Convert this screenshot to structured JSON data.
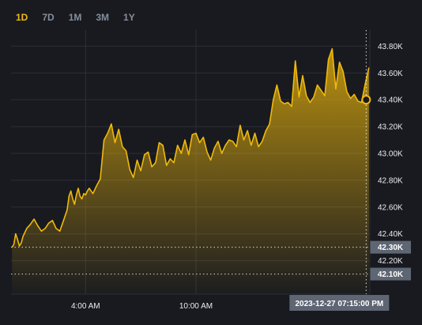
{
  "tabs": [
    {
      "label": "1D",
      "active": true
    },
    {
      "label": "7D",
      "active": false
    },
    {
      "label": "1M",
      "active": false
    },
    {
      "label": "3M",
      "active": false
    },
    {
      "label": "1Y",
      "active": false
    }
  ],
  "colors": {
    "accent": "#f0b90b",
    "background": "#181a20",
    "grid": "#2b2f36",
    "tag": "#5e6673"
  },
  "chart_data": {
    "type": "area",
    "xlabel": "",
    "ylabel": "",
    "y_ticks": [
      "42.40K",
      "42.60K",
      "42.80K",
      "43.00K",
      "43.20K",
      "43.40K",
      "43.60K",
      "43.80K"
    ],
    "y_tick_values": [
      42400,
      42600,
      42800,
      43000,
      43200,
      43400,
      43600,
      43800
    ],
    "x_ticks": [
      {
        "label": "4:00 AM",
        "hour": 4.0
      },
      {
        "label": "10:00 AM",
        "hour": 10.0
      }
    ],
    "ylim": [
      41950,
      43920
    ],
    "xlim_hours": [
      -0.05,
      19.45
    ],
    "grid": true,
    "reference_lines": [
      {
        "label": "42.30K",
        "value": 42300
      },
      {
        "label": "42.10K",
        "value": 42100
      }
    ],
    "crosshair": {
      "label": "2023-12-27 07:15:00 PM",
      "hour": 19.25,
      "value": 43400
    },
    "series": [
      {
        "x_hours": [
          0.0,
          0.1,
          0.2,
          0.3,
          0.4,
          0.5,
          0.6,
          0.8,
          1.0,
          1.2,
          1.4,
          1.6,
          1.8,
          2.0,
          2.2,
          2.4,
          2.6,
          2.8,
          3.0,
          3.1,
          3.2,
          3.3,
          3.4,
          3.5,
          3.6,
          3.7,
          3.8,
          3.9,
          4.0,
          4.1,
          4.2,
          4.4,
          4.6,
          4.8,
          5.0,
          5.2,
          5.4,
          5.6,
          5.8,
          6.0,
          6.2,
          6.4,
          6.6,
          6.8,
          7.0,
          7.2,
          7.4,
          7.6,
          7.8,
          8.0,
          8.2,
          8.4,
          8.6,
          8.8,
          9.0,
          9.2,
          9.4,
          9.6,
          9.8,
          10.0,
          10.2,
          10.4,
          10.6,
          10.8,
          11.0,
          11.2,
          11.4,
          11.6,
          11.8,
          12.0,
          12.2,
          12.4,
          12.6,
          12.8,
          13.0,
          13.2,
          13.4,
          13.6,
          13.8,
          14.0,
          14.2,
          14.4,
          14.6,
          14.8,
          15.0,
          15.2,
          15.4,
          15.6,
          15.8,
          16.0,
          16.2,
          16.4,
          16.6,
          16.8,
          17.0,
          17.2,
          17.4,
          17.6,
          17.8,
          18.0,
          18.2,
          18.4,
          18.6,
          18.8,
          19.0,
          19.2,
          19.4
        ],
        "values": [
          42300,
          42320,
          42400,
          42360,
          42310,
          42330,
          42380,
          42440,
          42470,
          42510,
          42460,
          42420,
          42440,
          42480,
          42500,
          42440,
          42420,
          42500,
          42580,
          42680,
          42720,
          42660,
          42620,
          42690,
          42740,
          42680,
          42660,
          42700,
          42690,
          42720,
          42740,
          42700,
          42760,
          42810,
          43100,
          43150,
          43220,
          43080,
          43180,
          43050,
          43020,
          42880,
          42820,
          42950,
          42870,
          42990,
          43010,
          42900,
          42930,
          43080,
          43060,
          42910,
          42960,
          42930,
          43060,
          43000,
          43100,
          42990,
          43140,
          43150,
          43080,
          43120,
          43010,
          42950,
          43040,
          43090,
          43000,
          43060,
          43100,
          43090,
          43050,
          43210,
          43100,
          43170,
          43060,
          43150,
          43050,
          43090,
          43170,
          43220,
          43400,
          43510,
          43390,
          43370,
          43380,
          43350,
          43690,
          43420,
          43580,
          43430,
          43380,
          43420,
          43510,
          43470,
          43430,
          43700,
          43780,
          43480,
          43680,
          43610,
          43460,
          43410,
          43440,
          43390,
          43380,
          43520,
          43640
        ]
      }
    ]
  }
}
